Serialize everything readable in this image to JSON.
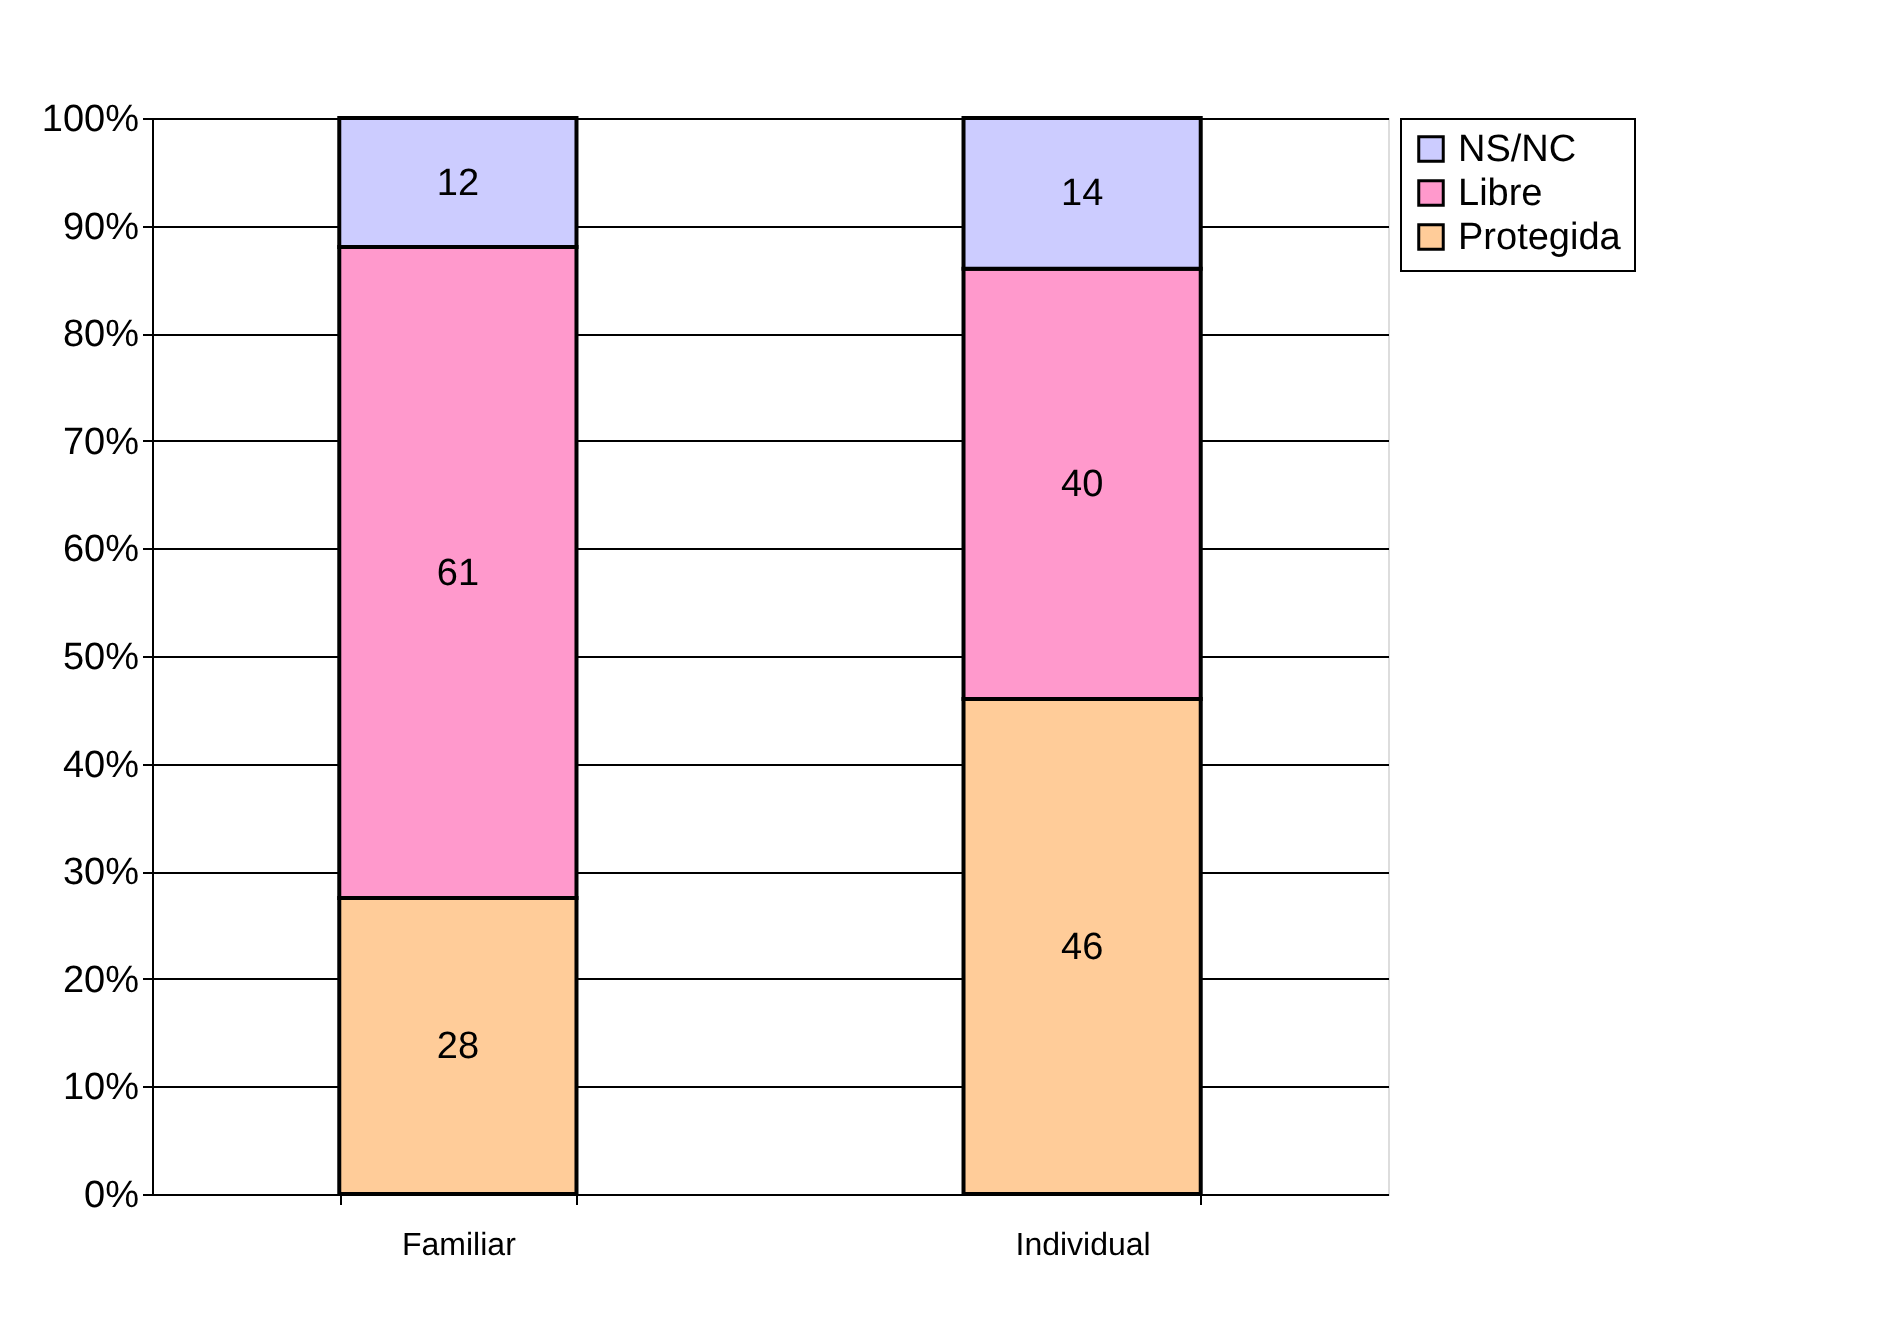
{
  "chart_data": {
    "type": "bar",
    "stacked": true,
    "categories": [
      "Familiar",
      "Individual"
    ],
    "series": [
      {
        "name": "Protegida",
        "color": "#ffcc99",
        "values": [
          27.5,
          46
        ],
        "value_labels": [
          "28",
          "46"
        ]
      },
      {
        "name": "Libre",
        "color": "#ff99cc",
        "values": [
          60.5,
          40
        ],
        "value_labels": [
          "61",
          "40"
        ]
      },
      {
        "name": "NS/NC",
        "color": "#ccccff",
        "values": [
          12,
          14
        ],
        "value_labels": [
          "12",
          "14"
        ]
      }
    ],
    "ylim": [
      0,
      100
    ],
    "yticks": [
      {
        "value": 0,
        "label": "0%"
      },
      {
        "value": 10,
        "label": "10%"
      },
      {
        "value": 20,
        "label": "20%"
      },
      {
        "value": 30,
        "label": "30%"
      },
      {
        "value": 40,
        "label": "40%"
      },
      {
        "value": 50,
        "label": "50%"
      },
      {
        "value": 60,
        "label": "60%"
      },
      {
        "value": 70,
        "label": "70%"
      },
      {
        "value": 80,
        "label": "80%"
      },
      {
        "value": 90,
        "label": "90%"
      },
      {
        "value": 100,
        "label": "100%"
      }
    ],
    "grid": "y",
    "legend": "right"
  }
}
